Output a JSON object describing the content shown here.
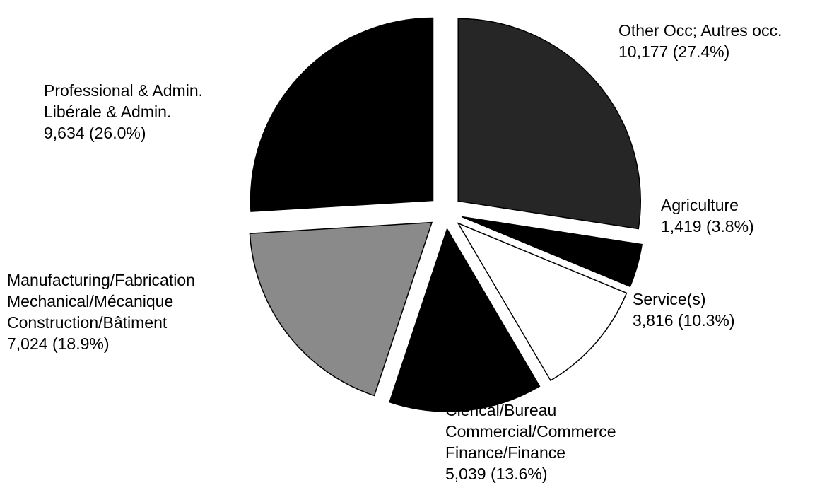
{
  "chart_data": {
    "type": "pie",
    "categories": [
      [
        "Other Occ; Autres occ."
      ],
      [
        "Agriculture"
      ],
      [
        "Service(s)"
      ],
      [
        "Clerical/Bureau",
        "Commercial/Commerce",
        "Finance/Finance"
      ],
      [
        "Manufacturing/Fabrication",
        "Mechanical/Mécanique",
        "Construction/Bâtiment"
      ],
      [
        "Professional & Admin.",
        "Libérale & Admin."
      ]
    ],
    "values": [
      10177,
      1419,
      3816,
      5039,
      7024,
      9634
    ],
    "value_labels": [
      "10,177 (27.4%)",
      "1,419 (3.8%)",
      "3,816 (10.3%)",
      "5,039 (13.6%)",
      "7,024 (18.9%)",
      "9,634 (26.0%)"
    ],
    "colors": [
      "#262626",
      "#000000",
      "#ffffff",
      "#000000",
      "#8a8a8a",
      "#000000"
    ]
  }
}
